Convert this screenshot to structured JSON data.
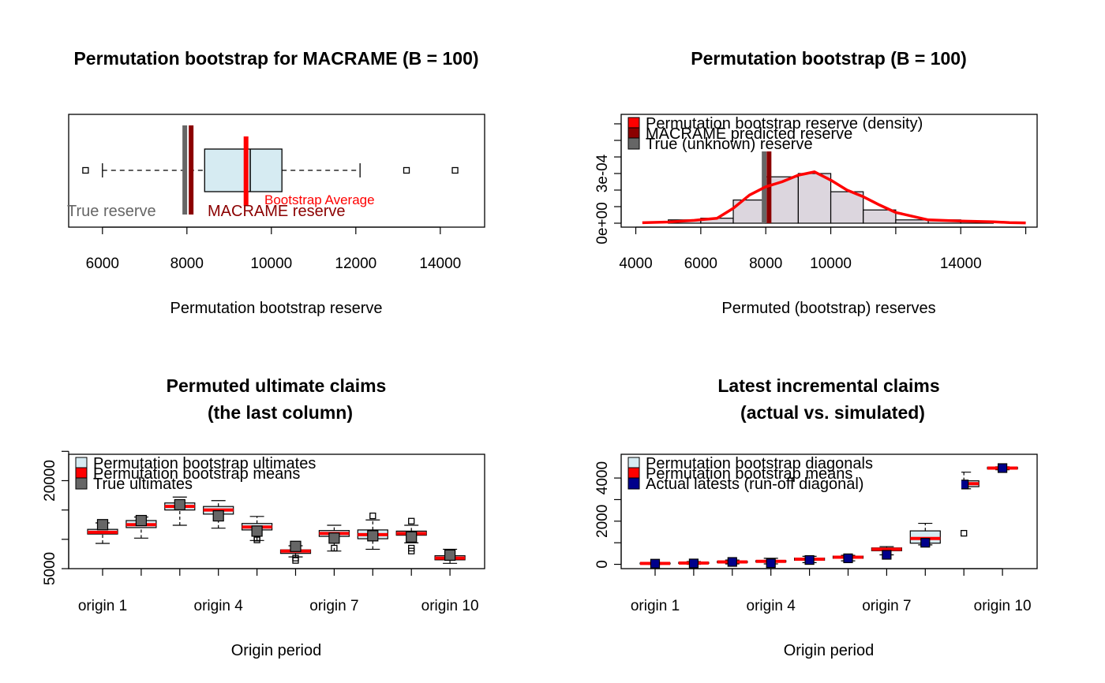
{
  "colors": {
    "boxFill": "#D6EBF2",
    "histFill": "#DCD6DE",
    "red": "#FF0000",
    "darkred": "#8B0000",
    "gray": "#666666",
    "navy": "#00008B",
    "truegray": "#666666"
  },
  "chart_data": [
    {
      "type": "boxplot",
      "title": "Permutation bootstrap for MACRAME (B = 100)",
      "xlabel": "Permutation bootstrap reserve",
      "xlim": [
        5200,
        15050
      ],
      "xticks": [
        6000,
        8000,
        10000,
        12000,
        14000
      ],
      "xtick_labels": [
        "6000",
        "8000",
        "10000",
        "12000",
        "14000"
      ],
      "box": {
        "whisker_low": 6000,
        "q1": 8420,
        "median": 9500,
        "q3": 10250,
        "whisker_high": 12100,
        "outliers": [
          5600,
          13200,
          14350
        ]
      },
      "lines": [
        {
          "name": "True reserve",
          "x": 7950,
          "color": "#666666"
        },
        {
          "name": "MACRAME reserve",
          "x": 8100,
          "color": "#8B0000"
        },
        {
          "name": "Bootstrap Average",
          "x": 9400,
          "color": "#FF0000"
        }
      ],
      "labels": {
        "true": "True reserve",
        "macrame": "MACRAME reserve",
        "avg": "Bootstrap Average"
      }
    },
    {
      "type": "histogram",
      "title": "Permutation bootstrap (B = 100)",
      "xlabel": "Permuted (bootstrap) reserves",
      "ylabel": "",
      "xlim": [
        3550,
        16350
      ],
      "ylim": [
        -4e-06,
        0.00041
      ],
      "xticks": [
        4000,
        6000,
        8000,
        10000,
        14000
      ],
      "xtick_labels": [
        "4000",
        "6000",
        "8000",
        "10000",
        "14000"
      ],
      "yticks": [
        0,
        0.0001,
        0.0002,
        0.0003,
        0.0004
      ],
      "ytick_labels": [
        "0e+00",
        "",
        "",
        "3e-04",
        ""
      ],
      "bins": [
        [
          5000,
          6000,
          2e-05
        ],
        [
          6000,
          7000,
          3e-05
        ],
        [
          7000,
          8000,
          0.00014
        ],
        [
          8000,
          9000,
          0.00028
        ],
        [
          9000,
          10000,
          0.0003
        ],
        [
          10000,
          11000,
          0.00019
        ],
        [
          11000,
          12000,
          8e-05
        ],
        [
          12000,
          13000,
          2e-05
        ],
        [
          13000,
          14000,
          2e-05
        ],
        [
          14000,
          15000,
          1e-05
        ]
      ],
      "density": [
        [
          4200,
          3e-06
        ],
        [
          5000,
          7e-06
        ],
        [
          5800,
          1.7e-05
        ],
        [
          6500,
          3e-05
        ],
        [
          7000,
          9e-05
        ],
        [
          7500,
          0.00017
        ],
        [
          8000,
          0.00022
        ],
        [
          8500,
          0.00025
        ],
        [
          9000,
          0.00029
        ],
        [
          9500,
          0.00031
        ],
        [
          10000,
          0.00026
        ],
        [
          10500,
          0.0002
        ],
        [
          11000,
          0.00016
        ],
        [
          11500,
          0.00011
        ],
        [
          12000,
          6.5e-05
        ],
        [
          13000,
          2e-05
        ],
        [
          14000,
          1.3e-05
        ],
        [
          15000,
          8e-06
        ],
        [
          15500,
          4e-06
        ],
        [
          16000,
          2e-06
        ]
      ],
      "vlines": [
        {
          "x": 7950,
          "color": "#666666"
        },
        {
          "x": 8100,
          "color": "#8B0000"
        }
      ],
      "legend": [
        {
          "label": "Permutation bootstrap reserve (density)",
          "color": "#FF0000"
        },
        {
          "label": "MACRAME predicted reserve",
          "color": "#8B0000"
        },
        {
          "label": "True (unknown) reserve",
          "color": "#666666"
        }
      ]
    },
    {
      "type": "boxplot-grouped",
      "title_line1": "Permuted ultimate claims",
      "title_line2": "(the last column)",
      "xlabel": "Origin period",
      "ylim": [
        5000,
        24500
      ],
      "yticks": [
        5000,
        10000,
        15000,
        20000,
        25000
      ],
      "ytick_labels": [
        "5000",
        "",
        "",
        "20000",
        ""
      ],
      "xtick_labels": [
        "origin 1",
        "origin 4",
        "origin 7",
        "origin 10"
      ],
      "categories": [
        "origin 1",
        "origin 2",
        "origin 3",
        "origin 4",
        "origin 5",
        "origin 6",
        "origin 7",
        "origin 8",
        "origin 9",
        "origin 10"
      ],
      "boxes": [
        {
          "wl": 9300,
          "q1": 10900,
          "med": 11200,
          "q3": 11700,
          "wh": 12800,
          "mean": 11200,
          "actual": 12500,
          "out": []
        },
        {
          "wl": 10200,
          "q1": 12000,
          "med": 12500,
          "q3": 13200,
          "wh": 13800,
          "mean": 12500,
          "actual": 13200,
          "out": []
        },
        {
          "wl": 12400,
          "q1": 15000,
          "med": 15600,
          "q3": 16200,
          "wh": 17200,
          "mean": 15600,
          "actual": 15900,
          "out": []
        },
        {
          "wl": 11900,
          "q1": 14300,
          "med": 15000,
          "q3": 15600,
          "wh": 16600,
          "mean": 15000,
          "actual": 14000,
          "out": []
        },
        {
          "wl": 9800,
          "q1": 11600,
          "med": 12100,
          "q3": 12700,
          "wh": 13900,
          "mean": 12100,
          "actual": 11400,
          "out": [
            10200,
            9900
          ]
        },
        {
          "wl": 7000,
          "q1": 7600,
          "med": 8000,
          "q3": 8200,
          "wh": 8900,
          "mean": 8000,
          "actual": 8800,
          "out": [
            6800,
            6400
          ]
        },
        {
          "wl": 8000,
          "q1": 10500,
          "med": 11000,
          "q3": 11500,
          "wh": 12400,
          "mean": 11000,
          "actual": 10200,
          "out": [
            8500
          ]
        },
        {
          "wl": 8300,
          "q1": 10100,
          "med": 10800,
          "q3": 11600,
          "wh": 13300,
          "mean": 10800,
          "actual": 10600,
          "out": [
            14000
          ]
        },
        {
          "wl": 9400,
          "q1": 10700,
          "med": 11000,
          "q3": 11400,
          "wh": 12400,
          "mean": 11000,
          "actual": 10400,
          "out": [
            13100,
            8500,
            8000
          ]
        },
        {
          "wl": 5900,
          "q1": 6500,
          "med": 6800,
          "q3": 7200,
          "wh": 8300,
          "mean": 6800,
          "actual": 7300,
          "out": []
        }
      ],
      "legend": [
        {
          "label": "Permutation bootstrap ultimates",
          "color": "#D6EBF2"
        },
        {
          "label": "Permutation bootstrap means",
          "color": "#FF0000"
        },
        {
          "label": "True ultimates",
          "color": "#666666"
        }
      ]
    },
    {
      "type": "boxplot-grouped",
      "title_line1": "Latest incremental claims",
      "title_line2": "(actual vs. simulated)",
      "xlabel": "Origin period",
      "ylim": [
        -200,
        5100
      ],
      "yticks": [
        0,
        1000,
        2000,
        3000,
        4000
      ],
      "ytick_labels": [
        "0",
        "",
        "2000",
        "",
        "4000"
      ],
      "xtick_labels": [
        "origin 1",
        "origin 4",
        "origin 7",
        "origin 10"
      ],
      "categories": [
        "origin 1",
        "origin 2",
        "origin 3",
        "origin 4",
        "origin 5",
        "origin 6",
        "origin 7",
        "origin 8",
        "origin 9",
        "origin 10"
      ],
      "boxes": [
        {
          "wl": 0,
          "q1": 20,
          "med": 40,
          "q3": 60,
          "wh": 90,
          "mean": 40,
          "actual": 30,
          "out": []
        },
        {
          "wl": 0,
          "q1": 40,
          "med": 60,
          "q3": 90,
          "wh": 130,
          "mean": 60,
          "actual": 40,
          "out": []
        },
        {
          "wl": 20,
          "q1": 80,
          "med": 110,
          "q3": 140,
          "wh": 200,
          "mean": 110,
          "actual": 110,
          "out": []
        },
        {
          "wl": 20,
          "q1": 110,
          "med": 140,
          "q3": 170,
          "wh": 280,
          "mean": 140,
          "actual": 50,
          "out": []
        },
        {
          "wl": 80,
          "q1": 190,
          "med": 240,
          "q3": 290,
          "wh": 370,
          "mean": 240,
          "actual": 200,
          "out": []
        },
        {
          "wl": 160,
          "q1": 280,
          "med": 330,
          "q3": 380,
          "wh": 420,
          "mean": 330,
          "actual": 280,
          "out": []
        },
        {
          "wl": 440,
          "q1": 630,
          "med": 700,
          "q3": 760,
          "wh": 820,
          "mean": 700,
          "actual": 440,
          "out": []
        },
        {
          "wl": 900,
          "q1": 980,
          "med": 1200,
          "q3": 1550,
          "wh": 1900,
          "mean": 1200,
          "actual": 1000,
          "out": []
        },
        {
          "wl": 3500,
          "q1": 3600,
          "med": 3740,
          "q3": 3870,
          "wh": 4270,
          "mean": 3740,
          "actual": 3700,
          "out": [
            1440
          ]
        },
        {
          "wl": 4380,
          "q1": 4420,
          "med": 4460,
          "q3": 4500,
          "wh": 4520,
          "mean": 4460,
          "actual": 4460,
          "out": []
        }
      ],
      "legend": [
        {
          "label": "Permutation bootstrap diagonals",
          "color": "#D6EBF2"
        },
        {
          "label": "Permutation bootstrap means",
          "color": "#FF0000"
        },
        {
          "label": "Actual latests (run-off diagonal)",
          "color": "#00008B"
        }
      ]
    }
  ]
}
